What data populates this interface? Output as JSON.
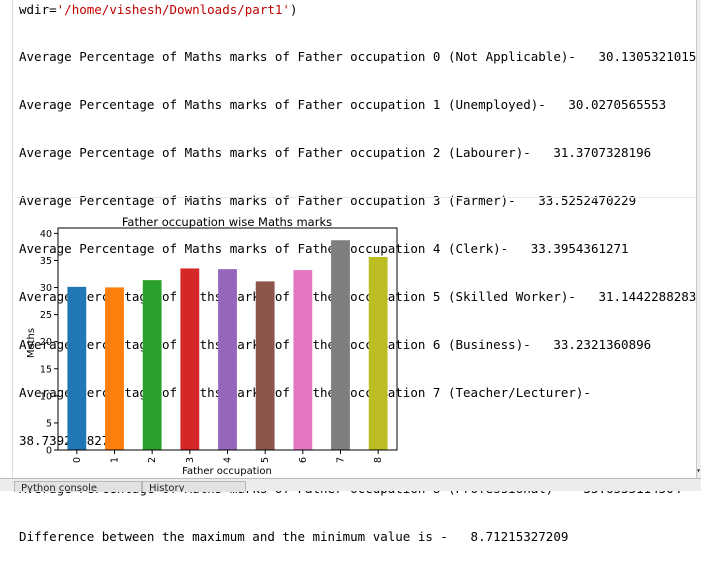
{
  "console": {
    "code_prefix": "wdir=",
    "code_string": "'/home/vishesh/Downloads/part1'",
    "code_suffix": ")",
    "output_lines": [
      "Average Percentage of Maths marks of Father occupation 0 (Not Applicable)-   30.1305321015",
      "Average Percentage of Maths marks of Father occupation 1 (Unemployed)-   30.0270565553",
      "Average Percentage of Maths marks of Father occupation 2 (Labourer)-   31.3707328196",
      "Average Percentage of Maths marks of Father occupation 3 (Farmer)-   33.5252470229",
      "Average Percentage of Maths marks of Father occupation 4 (Clerk)-   33.3954361271",
      "Average Percentage of Maths marks of Father occupation 5 (Skilled Worker)-   31.1442288283",
      "Average Percentage of Maths marks of Father occupation 6 (Business)-   33.2321360896",
      "Average Percentage of Maths marks of Father occupation 7 (Teacher/Lecturer)-",
      "38.7392098274",
      "Average Percentage of Maths marks of Father occupation 8 (Professional)-   35.6535114504",
      "Difference between the maximum and the minimum value is -   8.71215327209"
    ]
  },
  "bottom_tabs": [
    "Python console",
    "History"
  ],
  "chart_data": {
    "type": "bar",
    "title": "Father occupation wise Maths marks",
    "xlabel": "Father occupation",
    "ylabel": "Maths",
    "categories": [
      "0",
      "1",
      "2",
      "3",
      "4",
      "5",
      "6",
      "7",
      "8"
    ],
    "values": [
      30.13,
      30.03,
      31.37,
      33.53,
      33.4,
      31.14,
      33.23,
      38.74,
      35.65
    ],
    "colors": [
      "#1f77b4",
      "#ff7f0e",
      "#2ca02c",
      "#d62728",
      "#9467bd",
      "#8c564b",
      "#e377c2",
      "#7f7f7f",
      "#bcbd22"
    ],
    "ylim": [
      0,
      41
    ],
    "yticks": [
      "0",
      "5",
      "10",
      "15",
      "20",
      "25",
      "30",
      "35",
      "40"
    ],
    "grid": false,
    "legend": "none"
  }
}
